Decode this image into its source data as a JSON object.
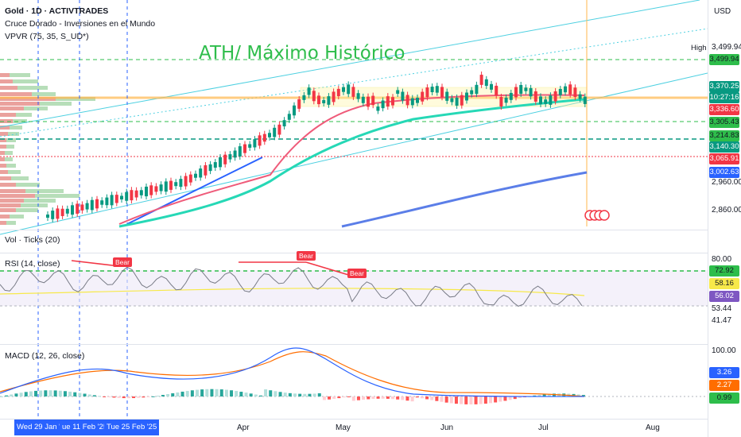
{
  "header": {
    "symbol_line": "Gold · 1D · ACTIVTRADES",
    "indicator_1": "Cruce Dorado - Inversiones en el Mundo",
    "indicator_2": "VPVR (75, 35, S_UD*)",
    "currency": "USD"
  },
  "annotation": {
    "ath_text": "ATH/ Máximo Histórico",
    "high_label": "High"
  },
  "price_axis": {
    "labels": [
      "3,499.94",
      "2,960.00",
      "2,860.00"
    ],
    "tags": [
      {
        "text": "3,499.94",
        "bg": "#2ebd4b",
        "fg": "#131722"
      },
      {
        "text": "3,370.25",
        "bg": "#089981",
        "fg": "#ffffff"
      },
      {
        "text": "10:27:16",
        "bg": "#089981",
        "fg": "#ffffff"
      },
      {
        "text": "3,336.60",
        "bg": "#f23645",
        "fg": "#ffffff"
      },
      {
        "text": "3,305.43",
        "bg": "#2ebd4b",
        "fg": "#131722"
      },
      {
        "text": "3,214.83",
        "bg": "#2ebd4b",
        "fg": "#131722"
      },
      {
        "text": "3,140.30",
        "bg": "#089981",
        "fg": "#ffffff"
      },
      {
        "text": "3,065.91",
        "bg": "#f23645",
        "fg": "#ffffff"
      },
      {
        "text": "3,002.63",
        "bg": "#2962ff",
        "fg": "#ffffff"
      }
    ]
  },
  "vol_pane": {
    "title": "Vol · Ticks (20)"
  },
  "rsi_pane": {
    "title": "RSI (14, close)",
    "labels": [
      "80.00",
      "53.44",
      "41.47"
    ],
    "tags": [
      {
        "text": "72.92",
        "bg": "#2ebd4b",
        "fg": "#131722"
      },
      {
        "text": "58.16",
        "bg": "#f7e94a",
        "fg": "#131722"
      },
      {
        "text": "56.02",
        "bg": "#7e57c2",
        "fg": "#ffffff"
      }
    ],
    "bear_label": "Bear"
  },
  "macd_pane": {
    "title": "MACD (12, 26, close)",
    "labels": [
      "100.00"
    ],
    "tags": [
      {
        "text": "3.26",
        "bg": "#2962ff",
        "fg": "#ffffff"
      },
      {
        "text": "2.27",
        "bg": "#ff6d00",
        "fg": "#ffffff"
      },
      {
        "text": "0.99",
        "bg": "#2ebd4b",
        "fg": "#131722"
      }
    ]
  },
  "time_axis": {
    "tags": [
      "Wed 29 Jan '25",
      "ue 11 Feb '25",
      "Tue 25 Feb '25"
    ],
    "labels": [
      "Apr",
      "May",
      "Jun",
      "Jul",
      "Aug"
    ]
  },
  "colors": {
    "bull": "#089981",
    "bear": "#f23645",
    "ath_green": "#2ebd4b",
    "accent": "#2962ff"
  }
}
